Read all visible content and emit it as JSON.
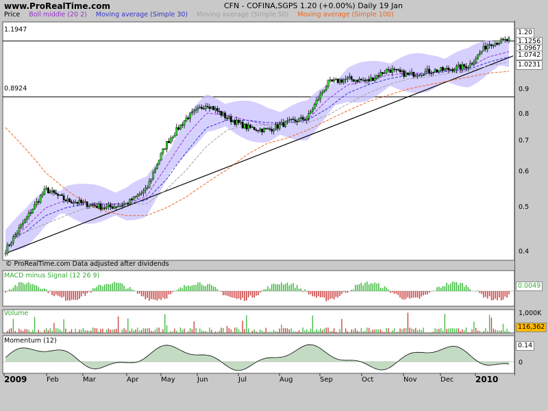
{
  "header": {
    "site": "www.ProRealTime.com",
    "title": "CFN - COFINA,SGPS    1.20 (+0.00%)    Daily  19 Jan"
  },
  "legend": [
    {
      "label": "Price",
      "color": "#000000"
    },
    {
      "label": "Boll middle (20 2)",
      "color": "#9933cc"
    },
    {
      "label": "Moving average (Simple 30)",
      "color": "#3333cc"
    },
    {
      "label": "Moving average (Simple 50)",
      "color": "#a0a0a0"
    },
    {
      "label": "Moving average (Simple 100)",
      "color": "#ee6622"
    }
  ],
  "hlines": [
    {
      "label": "1.1947",
      "value": 1.1947
    },
    {
      "label": "0.8924",
      "value": 0.8924
    }
  ],
  "right_tags": [
    {
      "text": "1.20",
      "bg": "#ffbb00",
      "value": 1.2
    },
    {
      "text": "1.1256",
      "bg": "#d8c8ff",
      "value": 1.1256
    },
    {
      "text": "1.0967",
      "bg": "#c8d0ff",
      "value": 1.0967
    },
    {
      "text": "1.0742",
      "bg": "#eeeeee",
      "value": 1.0742
    },
    {
      "text": "1.0231",
      "bg": "#ffd8b0",
      "value": 1.0231
    }
  ],
  "price_ticks": [
    "0.9",
    "0.8",
    "0.7",
    "0.6",
    "0.5",
    "0.4"
  ],
  "watermark": "© ProRealTime.com  Data adjusted after dividends",
  "macd": {
    "label": "MACD minus Signal (12 26 9)",
    "value": "0.0049"
  },
  "volume": {
    "label": "Volume",
    "axis": "1,000K",
    "value": "116,362"
  },
  "momentum": {
    "label": "Momentum (12)",
    "value": "0.14",
    "zero": "0"
  },
  "months": [
    "2009",
    "Feb",
    "Mar",
    "Apr",
    "May",
    "Jun",
    "Jul",
    "Aug",
    "Sep",
    "Oct",
    "Nov",
    "Dec",
    "2010"
  ],
  "chart_data": {
    "type": "line",
    "title": "CFN - COFINA,SGPS  Daily",
    "xlabel": "",
    "ylabel": "Price",
    "ylog": true,
    "ylim": [
      0.38,
      1.32
    ],
    "x": [
      "2009-01",
      "2009-01",
      "2009-02",
      "2009-02",
      "2009-03",
      "2009-03",
      "2009-04",
      "2009-04",
      "2009-05",
      "2009-05",
      "2009-06",
      "2009-06",
      "2009-07",
      "2009-07",
      "2009-08",
      "2009-08",
      "2009-09",
      "2009-09",
      "2009-10",
      "2009-10",
      "2009-11",
      "2009-11",
      "2009-12",
      "2009-12",
      "2010-01",
      "2010-01"
    ],
    "series": [
      {
        "name": "Price",
        "values": [
          0.4,
          0.47,
          0.55,
          0.52,
          0.51,
          0.5,
          0.51,
          0.55,
          0.7,
          0.8,
          0.86,
          0.8,
          0.76,
          0.75,
          0.78,
          0.8,
          0.96,
          0.98,
          0.97,
          1.03,
          1.0,
          1.02,
          1.03,
          1.05,
          1.18,
          1.2
        ]
      },
      {
        "name": "Boll middle (20 2)",
        "values": [
          0.42,
          0.45,
          0.5,
          0.52,
          0.51,
          0.51,
          0.51,
          0.53,
          0.62,
          0.73,
          0.82,
          0.81,
          0.79,
          0.77,
          0.78,
          0.79,
          0.88,
          0.95,
          0.97,
          1.0,
          1.01,
          1.01,
          1.03,
          1.04,
          1.1,
          1.13
        ]
      },
      {
        "name": "Moving average (Simple 30)",
        "values": [
          0.42,
          0.44,
          0.48,
          0.5,
          0.51,
          0.51,
          0.51,
          0.52,
          0.58,
          0.67,
          0.76,
          0.79,
          0.79,
          0.78,
          0.78,
          0.79,
          0.84,
          0.91,
          0.95,
          0.98,
          1.0,
          1.01,
          1.02,
          1.03,
          1.07,
          1.1
        ]
      },
      {
        "name": "Moving average (Simple 50)",
        "values": [
          0.43,
          0.44,
          0.46,
          0.48,
          0.5,
          0.5,
          0.51,
          0.51,
          0.55,
          0.61,
          0.69,
          0.75,
          0.77,
          0.77,
          0.78,
          0.78,
          0.81,
          0.86,
          0.91,
          0.95,
          0.98,
          0.99,
          1.01,
          1.02,
          1.05,
          1.07
        ]
      },
      {
        "name": "Moving average (Simple 100)",
        "values": [
          0.76,
          0.68,
          0.6,
          0.55,
          0.51,
          0.49,
          0.48,
          0.48,
          0.5,
          0.53,
          0.57,
          0.61,
          0.66,
          0.7,
          0.72,
          0.75,
          0.79,
          0.83,
          0.87,
          0.9,
          0.93,
          0.95,
          0.97,
          0.99,
          1.01,
          1.02
        ]
      }
    ]
  }
}
